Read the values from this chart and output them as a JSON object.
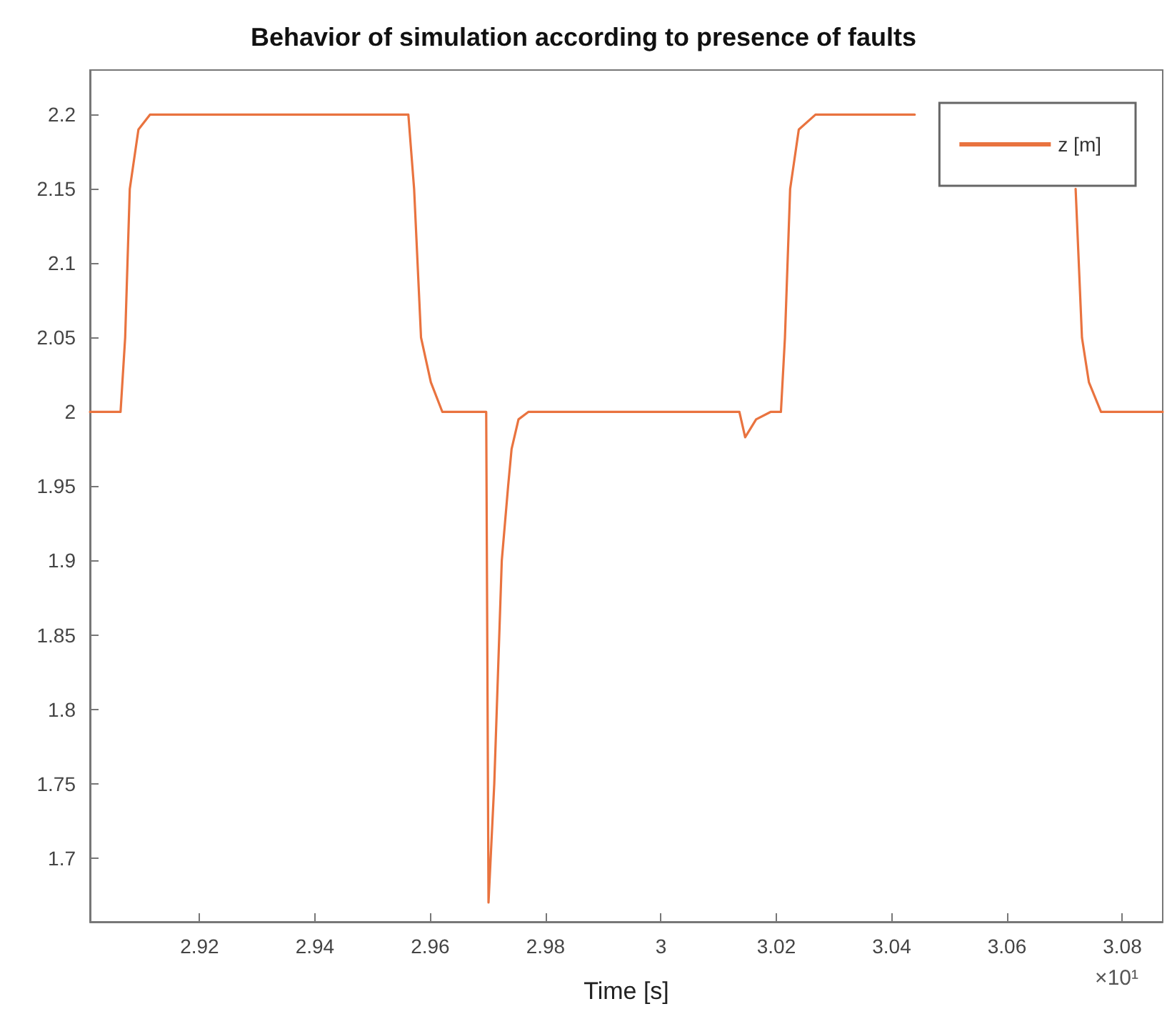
{
  "chart_data": {
    "type": "line",
    "title": "Behavior of simulation according to presence of faults",
    "xlabel": "Time [s]",
    "annotations": [
      "×10¹"
    ],
    "x": [
      2.901,
      2.9063,
      2.9071,
      2.9079,
      2.9094,
      2.9114,
      2.9562,
      2.9572,
      2.9584,
      2.9601,
      2.9621,
      2.9697,
      2.9701,
      2.9711,
      2.9724,
      2.9735,
      2.9741,
      2.9753,
      2.977,
      3.0136,
      3.0146,
      3.0165,
      3.019,
      3.0208,
      3.0215,
      3.0224,
      3.0239,
      3.0268,
      3.044,
      3.058,
      3.0719,
      3.073,
      3.0742,
      3.0763,
      3.087
    ],
    "series": [
      {
        "name": "z [m]",
        "color": "#e9733f",
        "values": [
          2.0,
          2.0,
          2.05,
          2.15,
          2.19,
          2.2,
          2.2,
          2.15,
          2.05,
          2.02,
          2.0,
          2.0,
          1.67,
          1.75,
          1.9,
          1.95,
          1.975,
          1.995,
          2.0,
          2.0,
          1.983,
          1.995,
          2.0,
          2.0,
          2.05,
          2.15,
          2.19,
          2.2,
          2.2,
          null,
          2.15,
          2.05,
          2.02,
          2.0,
          2.0
        ]
      }
    ],
    "xlim": [
      2.901,
      3.087
    ],
    "xticks": [
      2.92,
      2.94,
      2.96,
      2.98,
      3,
      3.02,
      3.04,
      3.06,
      3.08
    ],
    "ylim": [
      1.657,
      2.23
    ],
    "yticks": [
      1.7,
      1.75,
      1.8,
      1.85,
      1.9,
      1.95,
      2,
      2.05,
      2.1,
      2.15,
      2.2
    ],
    "grid": false,
    "legend": "top right",
    "marker": "none",
    "line_style": "solid"
  }
}
